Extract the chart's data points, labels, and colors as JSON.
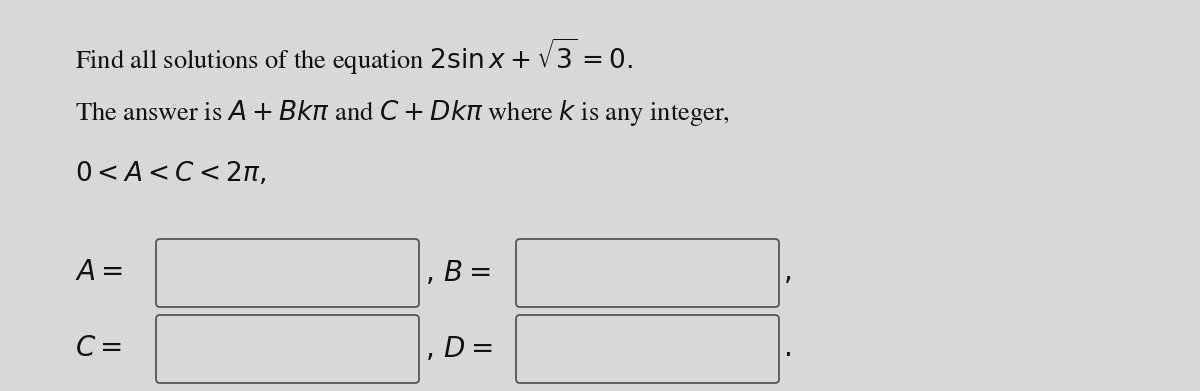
{
  "background_color": "#d8d8d8",
  "box_fill": "#d8d8d8",
  "box_edge": "#555555",
  "text_color": "#111111",
  "font_size": 19,
  "line1_plain": "Find all solutions of the equation ",
  "line1_math": "$2\\sin x + \\sqrt{3} = 0.$",
  "line2_plain": "The answer is ",
  "line2_math": "$A + Bk\\pi$",
  "line2_mid": " and ",
  "line2_math2": "$C + Dk\\pi$",
  "line2_end": " where ",
  "line2_k": "$k$",
  "line2_tail": " is any integer,",
  "line3": "$0 < A < C < 2\\pi,$",
  "label_A": "$A =$",
  "label_B": "$,\\, B =$",
  "label_C": "$C =$",
  "label_D": "$,\\, D =$",
  "comma_B": "$,$",
  "period_D": "$.$"
}
